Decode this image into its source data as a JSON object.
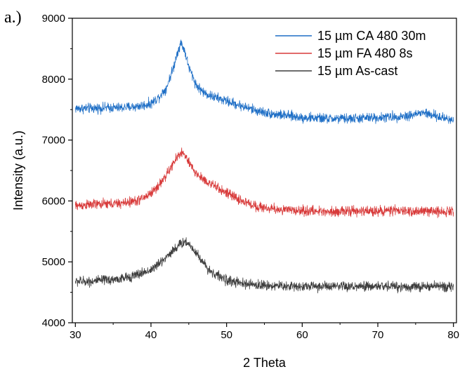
{
  "panel_label": "a.)",
  "chart_data": {
    "type": "line",
    "title": "",
    "xlabel": "2 Theta",
    "ylabel": "Intensity (a.u.)",
    "xlim": [
      29.6,
      80.4
    ],
    "ylim": [
      4000,
      9000
    ],
    "xticks": [
      30,
      40,
      50,
      60,
      70,
      80
    ],
    "yticks": [
      4000,
      5000,
      6000,
      7000,
      8000,
      9000
    ],
    "legend_position": "top-right",
    "series": [
      {
        "name": "15 µm CA 480 30m",
        "color": "#1f6fc6",
        "noise": 120,
        "x": [
          30,
          32,
          34,
          36,
          38,
          39,
          40,
          41,
          42,
          43,
          43.5,
          44,
          44.5,
          45,
          46,
          47,
          48,
          50,
          52,
          54,
          56,
          58,
          60,
          62,
          64,
          66,
          68,
          70,
          72,
          74,
          76,
          78,
          80
        ],
        "y": [
          7520,
          7520,
          7530,
          7530,
          7550,
          7570,
          7600,
          7700,
          7850,
          8200,
          8450,
          8600,
          8450,
          8200,
          7900,
          7780,
          7720,
          7640,
          7560,
          7480,
          7430,
          7400,
          7370,
          7360,
          7350,
          7350,
          7360,
          7370,
          7380,
          7400,
          7450,
          7380,
          7330
        ]
      },
      {
        "name": "15 µm FA 480 8s",
        "color": "#d83a3a",
        "noise": 120,
        "x": [
          30,
          32,
          34,
          36,
          38,
          39,
          40,
          41,
          42,
          43,
          43.5,
          44,
          44.5,
          45,
          46,
          47,
          48,
          50,
          52,
          54,
          56,
          58,
          60,
          62,
          64,
          66,
          68,
          70,
          72,
          74,
          76,
          78,
          80
        ],
        "y": [
          5920,
          5940,
          5950,
          5960,
          6000,
          6050,
          6130,
          6250,
          6420,
          6620,
          6730,
          6800,
          6750,
          6620,
          6450,
          6350,
          6270,
          6130,
          6000,
          5910,
          5870,
          5850,
          5840,
          5830,
          5830,
          5830,
          5830,
          5840,
          5840,
          5830,
          5830,
          5830,
          5830
        ]
      },
      {
        "name": "15 µm As-cast",
        "color": "#3d3d3d",
        "noise": 120,
        "x": [
          30,
          32,
          34,
          36,
          38,
          40,
          41,
          42,
          43,
          44,
          44.5,
          45,
          46,
          47,
          48,
          50,
          52,
          54,
          56,
          58,
          60,
          62,
          64,
          66,
          68,
          70,
          72,
          74,
          76,
          78,
          80
        ],
        "y": [
          4680,
          4680,
          4700,
          4720,
          4780,
          4870,
          4960,
          5080,
          5200,
          5300,
          5330,
          5300,
          5150,
          4970,
          4830,
          4700,
          4640,
          4620,
          4610,
          4600,
          4600,
          4600,
          4590,
          4590,
          4590,
          4600,
          4600,
          4590,
          4590,
          4600,
          4600
        ]
      }
    ]
  }
}
